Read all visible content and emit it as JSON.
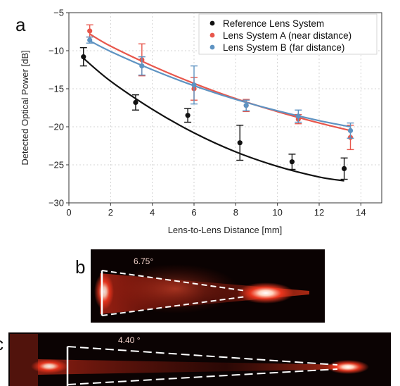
{
  "panel_labels": {
    "a": "a",
    "b": "b",
    "c": "c"
  },
  "chart_data": {
    "type": "scatter",
    "xlabel": "Lens-to-Lens Distance [mm]",
    "ylabel": "Detected Optical Power [dB]",
    "xlim": [
      0,
      15
    ],
    "ylim": [
      -30,
      -5
    ],
    "xticks": [
      0,
      2,
      4,
      6,
      8,
      10,
      12,
      14
    ],
    "yticks": [
      -30,
      -25,
      -20,
      -15,
      -10,
      -5
    ],
    "grid": true,
    "legend_position": "top-right",
    "series": [
      {
        "name": "Reference Lens System",
        "color": "#111111",
        "x": [
          0.7,
          3.2,
          5.7,
          8.2,
          10.7,
          13.2
        ],
        "y": [
          -10.8,
          -16.8,
          -18.5,
          -22.1,
          -24.6,
          -25.5
        ],
        "err": [
          1.2,
          1.0,
          0.9,
          2.3,
          1.0,
          1.4
        ],
        "fit_x": [
          0.7,
          2,
          4,
          6,
          8,
          10,
          12,
          13.2
        ],
        "fit_y": [
          -11.0,
          -14.0,
          -17.7,
          -20.8,
          -23.3,
          -25.2,
          -26.6,
          -27.1
        ]
      },
      {
        "name": "Lens System A (near distance)",
        "color": "#e8574c",
        "x": [
          1.0,
          3.5,
          6.0,
          8.5,
          11.0,
          13.5
        ],
        "y": [
          -7.4,
          -11.2,
          -15.0,
          -17.2,
          -19.0,
          -21.4
        ],
        "err": [
          0.8,
          2.1,
          1.5,
          0.8,
          0.6,
          1.6
        ],
        "fit_x": [
          1.0,
          2,
          4,
          6,
          8,
          10,
          12,
          13.5
        ],
        "fit_y": [
          -7.8,
          -9.4,
          -12.0,
          -14.3,
          -16.3,
          -18.0,
          -19.5,
          -20.5
        ]
      },
      {
        "name": "Lens System B (far distance)",
        "color": "#5e93c2",
        "x": [
          1.0,
          3.5,
          6.0,
          8.5,
          11.0,
          13.5
        ],
        "y": [
          -8.6,
          -12.0,
          -14.5,
          -17.2,
          -18.6,
          -20.5
        ],
        "err": [
          0.4,
          1.2,
          2.5,
          0.7,
          0.8,
          1.0
        ],
        "fit_x": [
          1.0,
          2,
          4,
          6,
          8,
          10,
          12,
          13.5
        ],
        "fit_y": [
          -8.7,
          -10.1,
          -12.5,
          -14.6,
          -16.4,
          -17.9,
          -19.2,
          -20.0
        ]
      }
    ]
  },
  "photos": {
    "b": {
      "angle_label": "6.75°",
      "glow_color": "#ff3a20"
    },
    "c": {
      "angle_label": "4.40 °",
      "glow_color": "#ff3a20"
    }
  }
}
